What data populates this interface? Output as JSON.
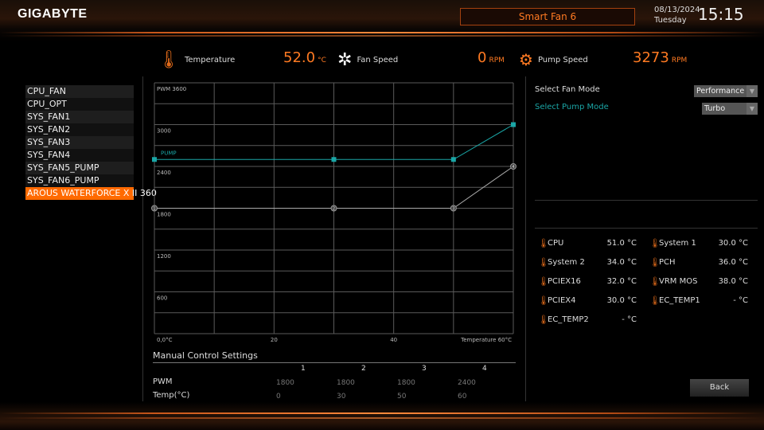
{
  "header": {
    "logo": "GIGABYTE",
    "mode_tab": "Smart Fan 6",
    "date": "08/13/2024",
    "day": "Tuesday",
    "time": "15:15"
  },
  "stats": {
    "temperature": {
      "label": "Temperature",
      "value": "52.0",
      "unit": "°C"
    },
    "fan_speed": {
      "label": "Fan Speed",
      "value": "0",
      "unit": "RPM"
    },
    "pump_speed": {
      "label": "Pump Speed",
      "value": "3273",
      "unit": "RPM"
    }
  },
  "fans": [
    "CPU_FAN",
    "CPU_OPT",
    "SYS_FAN1",
    "SYS_FAN2",
    "SYS_FAN3",
    "SYS_FAN4",
    "SYS_FAN5_PUMP",
    "SYS_FAN6_PUMP",
    "AROUS WATERFORCE X II 360"
  ],
  "selected_fan_index": 8,
  "chart_data": {
    "type": "line",
    "xlim": [
      0,
      60
    ],
    "ylim": [
      0,
      3600
    ],
    "grid": true,
    "x_tick_labels": [
      "0,0°C",
      "20",
      "40",
      "Temperature 60°C"
    ],
    "y_tick_labels": [
      "PWM 3600",
      "3000",
      "2400",
      "1800",
      "1200",
      "600"
    ],
    "series": [
      {
        "x": [
          0,
          30,
          50,
          60
        ],
        "y": [
          1800,
          1800,
          1800,
          2400
        ],
        "point_labels": [
          "1",
          "2",
          "3",
          "4"
        ],
        "color": "#aaaaaa"
      },
      {
        "name": "PUMP",
        "x": [
          0,
          30,
          50,
          60
        ],
        "y": [
          2500,
          2500,
          2500,
          3000
        ],
        "color": "#1aa6a6"
      }
    ]
  },
  "manual": {
    "title": "Manual Control Settings",
    "columns": [
      "1",
      "2",
      "3",
      "4"
    ],
    "pwm_label": "PWM",
    "pwm": [
      "1800",
      "1800",
      "1800",
      "2400"
    ],
    "temp_label": "Temp(°C)",
    "temp": [
      "0",
      "30",
      "50",
      "60"
    ]
  },
  "right": {
    "fan_mode_label": "Select Fan Mode",
    "fan_mode": "Performance",
    "pump_mode_label": "Select Pump Mode",
    "pump_mode": "Turbo",
    "temps": [
      {
        "name": "CPU",
        "value": "51.0 °C"
      },
      {
        "name": "System 1",
        "value": "30.0 °C"
      },
      {
        "name": "System 2",
        "value": "34.0 °C"
      },
      {
        "name": "PCH",
        "value": "36.0 °C"
      },
      {
        "name": "PCIEX16",
        "value": "32.0 °C"
      },
      {
        "name": "VRM MOS",
        "value": "38.0 °C"
      },
      {
        "name": "PCIEX4",
        "value": "30.0 °C"
      },
      {
        "name": "EC_TEMP1",
        "value": "- °C"
      },
      {
        "name": "EC_TEMP2",
        "value": "- °C"
      }
    ],
    "back": "Back"
  },
  "colors": {
    "accent": "#ff7a22",
    "pump": "#1aa6a6"
  }
}
